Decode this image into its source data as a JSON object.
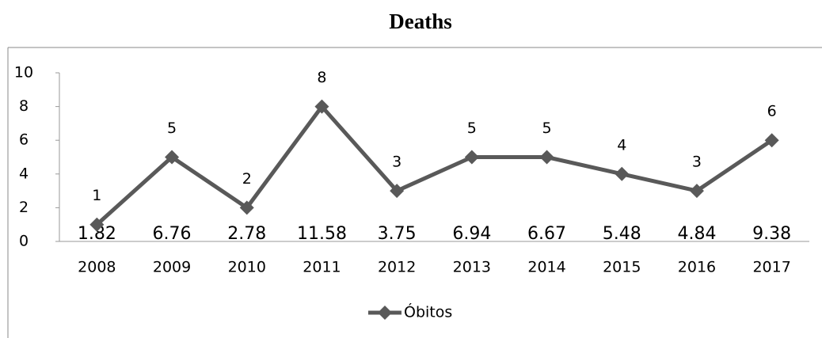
{
  "chart_data": {
    "type": "line",
    "title": "Deaths",
    "categories": [
      "2008",
      "2009",
      "2010",
      "2011",
      "2012",
      "2013",
      "2014",
      "2015",
      "2016",
      "2017"
    ],
    "series": [
      {
        "name": "Óbitos",
        "color": "#595959",
        "values": [
          1,
          5,
          2,
          8,
          3,
          5,
          5,
          4,
          3,
          6
        ]
      }
    ],
    "annotations": [
      "1.82",
      "6.76",
      "2.78",
      "11.58",
      "3.75",
      "6.94",
      "6.67",
      "5.48",
      "4.84",
      "9.38"
    ],
    "ylim": [
      0,
      10
    ],
    "yticks": [
      0,
      2,
      4,
      6,
      8,
      10
    ],
    "grid": false,
    "legend": "bottom"
  }
}
